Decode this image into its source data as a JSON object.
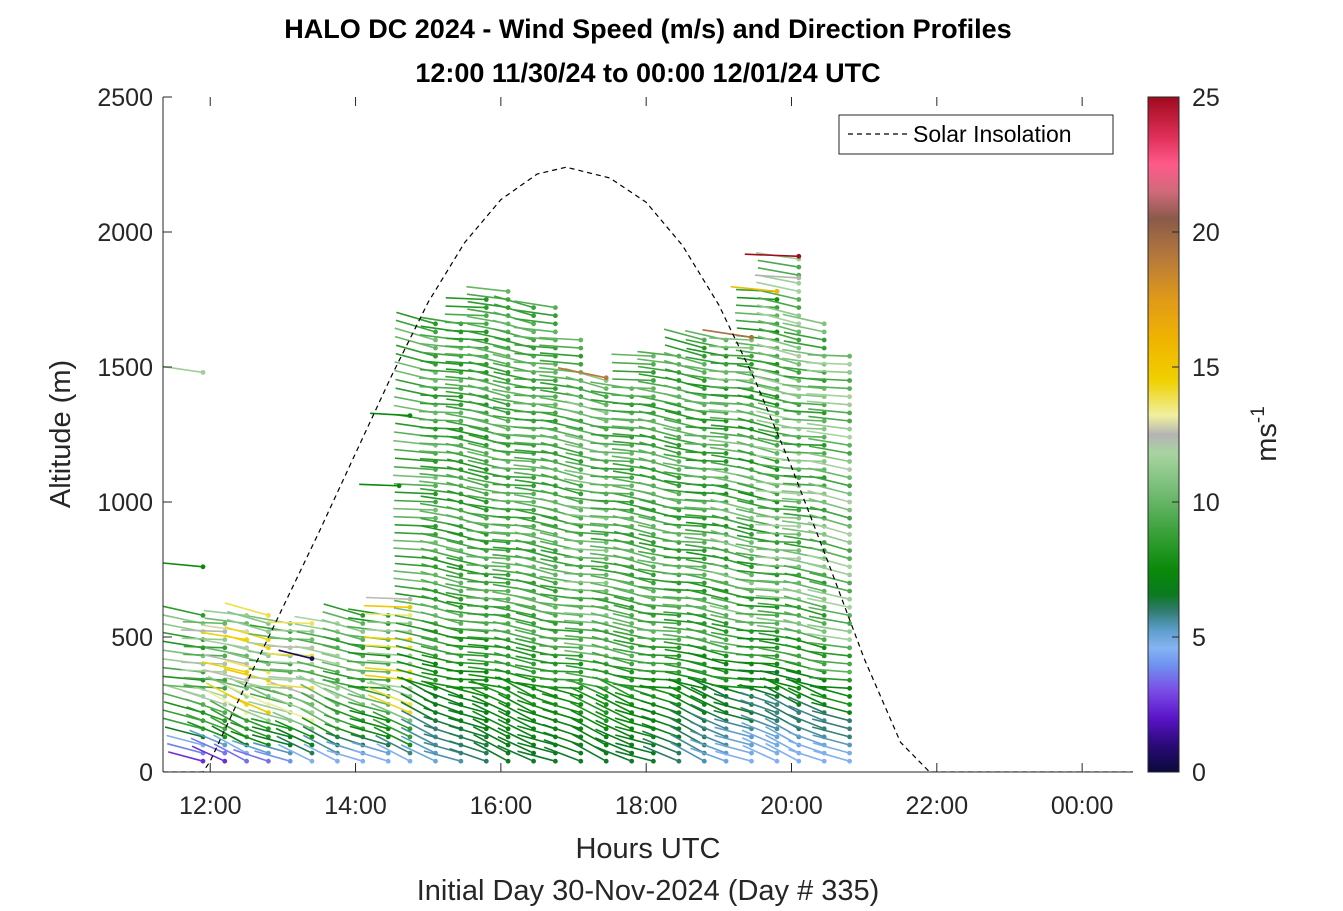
{
  "chart_data": {
    "type": "scatter",
    "title": "HALO DC 2024 - Wind Speed (m/s) and Direction Profiles",
    "subtitle": "12:00 11/30/24 to 00:00 12/01/24  UTC",
    "xlabel": "Hours UTC",
    "x_sublabel": "Initial Day 30-Nov-2024 (Day # 335)",
    "ylabel": "Altitude (m)",
    "xlim": [
      11.35,
      24.7
    ],
    "ylim": [
      0,
      2500
    ],
    "x_ticks": [
      {
        "value": 12,
        "label": "12:00"
      },
      {
        "value": 14,
        "label": "14:00"
      },
      {
        "value": 16,
        "label": "16:00"
      },
      {
        "value": 18,
        "label": "18:00"
      },
      {
        "value": 20,
        "label": "20:00"
      },
      {
        "value": 22,
        "label": "22:00"
      },
      {
        "value": 24,
        "label": "00:00"
      }
    ],
    "y_ticks": [
      {
        "value": 0,
        "label": "0"
      },
      {
        "value": 500,
        "label": "500"
      },
      {
        "value": 1000,
        "label": "1000"
      },
      {
        "value": 1500,
        "label": "1500"
      },
      {
        "value": 2000,
        "label": "2000"
      },
      {
        "value": 2500,
        "label": "2500"
      }
    ],
    "legend": {
      "position": "top-right",
      "entries": [
        "Solar Insolation"
      ]
    },
    "colorbar": {
      "label": "ms",
      "label_sup": "-1",
      "range": [
        0,
        25
      ],
      "ticks": [
        {
          "value": 0,
          "label": "0"
        },
        {
          "value": 5,
          "label": "5"
        },
        {
          "value": 10,
          "label": "10"
        },
        {
          "value": 15,
          "label": "15"
        },
        {
          "value": 20,
          "label": "20"
        },
        {
          "value": 25,
          "label": "25"
        }
      ],
      "stops": [
        {
          "v": 0,
          "c": "#0a0a3c"
        },
        {
          "v": 1,
          "c": "#2a0a78"
        },
        {
          "v": 2,
          "c": "#5a14c8"
        },
        {
          "v": 3,
          "c": "#7a4ce6"
        },
        {
          "v": 4,
          "c": "#6f94f0"
        },
        {
          "v": 4.6,
          "c": "#86b4f2"
        },
        {
          "v": 5.3,
          "c": "#5a9cc8"
        },
        {
          "v": 6.0,
          "c": "#2e7a6a"
        },
        {
          "v": 6.6,
          "c": "#0a7a1e"
        },
        {
          "v": 7.5,
          "c": "#0a8a0a"
        },
        {
          "v": 9,
          "c": "#3ea33e"
        },
        {
          "v": 10.5,
          "c": "#78be78"
        },
        {
          "v": 11.8,
          "c": "#a8d4a0"
        },
        {
          "v": 12.5,
          "c": "#b4b4b4"
        },
        {
          "v": 13.2,
          "c": "#f0f0a0"
        },
        {
          "v": 14.5,
          "c": "#f0d000"
        },
        {
          "v": 16,
          "c": "#f0b400"
        },
        {
          "v": 17.5,
          "c": "#e09a18"
        },
        {
          "v": 19,
          "c": "#b87a3a"
        },
        {
          "v": 20.5,
          "c": "#8a5a4a"
        },
        {
          "v": 21.5,
          "c": "#d06a7a"
        },
        {
          "v": 22.5,
          "c": "#ff5a8a"
        },
        {
          "v": 23.5,
          "c": "#e0305a"
        },
        {
          "v": 25,
          "c": "#a00a1e"
        }
      ]
    },
    "solar_insolation": {
      "series_name": "Solar Insolation",
      "x": [
        11.35,
        11.9,
        12.0,
        12.5,
        13.0,
        13.5,
        14.0,
        14.5,
        15.0,
        15.5,
        16.0,
        16.5,
        16.9,
        17.5,
        18.0,
        18.5,
        19.0,
        19.5,
        20.0,
        20.5,
        21.0,
        21.5,
        21.9,
        22.5,
        24.7
      ],
      "y": [
        0,
        0,
        40,
        330,
        610,
        890,
        1180,
        1470,
        1740,
        1960,
        2120,
        2215,
        2240,
        2200,
        2110,
        1950,
        1730,
        1450,
        1130,
        780,
        420,
        110,
        0,
        0,
        0
      ]
    },
    "wind_profiles": [
      {
        "time": 11.9,
        "alt_min": 40,
        "alt_max": 580,
        "speed_low": 2.5,
        "speed_high": 11.5
      },
      {
        "time": 12.2,
        "alt_min": 40,
        "alt_max": 560,
        "speed_low": 2.5,
        "speed_high": 12.5
      },
      {
        "time": 12.5,
        "alt_min": 40,
        "alt_max": 600,
        "speed_low": 3.5,
        "speed_high": 14.5
      },
      {
        "time": 12.8,
        "alt_min": 40,
        "alt_max": 590,
        "speed_low": 3.5,
        "speed_high": 15
      },
      {
        "time": 13.1,
        "alt_min": 40,
        "alt_max": 560,
        "speed_low": 4,
        "speed_high": 12
      },
      {
        "time": 13.4,
        "alt_min": 40,
        "alt_max": 560,
        "speed_low": 4.5,
        "speed_high": 14
      },
      {
        "time": 13.75,
        "alt_min": 40,
        "alt_max": 550,
        "speed_low": 4.5,
        "speed_high": 12
      },
      {
        "time": 14.1,
        "alt_min": 40,
        "alt_max": 580,
        "speed_low": 4.5,
        "speed_high": 11
      },
      {
        "time": 14.45,
        "alt_min": 40,
        "alt_max": 580,
        "speed_low": 4.5,
        "speed_high": 10
      },
      {
        "time": 14.75,
        "alt_min": 40,
        "alt_max": 650,
        "speed_low": 4.5,
        "speed_high": 15
      },
      {
        "time": 15.1,
        "alt_min": 40,
        "alt_max": 1660,
        "speed_low": 5,
        "speed_high": 10.5
      },
      {
        "time": 15.45,
        "alt_min": 40,
        "alt_max": 1670,
        "speed_low": 5.5,
        "speed_high": 10
      },
      {
        "time": 15.8,
        "alt_min": 40,
        "alt_max": 1760,
        "speed_low": 6,
        "speed_high": 9.5
      },
      {
        "time": 16.1,
        "alt_min": 40,
        "alt_max": 1780,
        "speed_low": 6.5,
        "speed_high": 10
      },
      {
        "time": 16.45,
        "alt_min": 40,
        "alt_max": 1740,
        "speed_low": 6.5,
        "speed_high": 10
      },
      {
        "time": 16.75,
        "alt_min": 40,
        "alt_max": 1740,
        "speed_low": 6.5,
        "speed_high": 10
      },
      {
        "time": 17.1,
        "alt_min": 40,
        "alt_max": 1620,
        "speed_low": 6.5,
        "speed_high": 10
      },
      {
        "time": 17.45,
        "alt_min": 40,
        "alt_max": 1460,
        "speed_low": 6.5,
        "speed_high": 11
      },
      {
        "time": 17.8,
        "alt_min": 40,
        "alt_max": 1420,
        "speed_low": 6.5,
        "speed_high": 10
      },
      {
        "time": 18.1,
        "alt_min": 40,
        "alt_max": 1540,
        "speed_low": 6.5,
        "speed_high": 10
      },
      {
        "time": 18.45,
        "alt_min": 40,
        "alt_max": 1540,
        "speed_low": 6,
        "speed_high": 10
      },
      {
        "time": 18.8,
        "alt_min": 40,
        "alt_max": 1600,
        "speed_low": 5.5,
        "speed_high": 10
      },
      {
        "time": 19.1,
        "alt_min": 40,
        "alt_max": 1600,
        "speed_low": 5,
        "speed_high": 10
      },
      {
        "time": 19.45,
        "alt_min": 40,
        "alt_max": 1610,
        "speed_low": 4.5,
        "speed_high": 11
      },
      {
        "time": 19.8,
        "alt_min": 40,
        "alt_max": 1780,
        "speed_low": 4.5,
        "speed_high": 10
      },
      {
        "time": 20.1,
        "alt_min": 40,
        "alt_max": 1910,
        "speed_low": 4.5,
        "speed_high": 12
      },
      {
        "time": 20.45,
        "alt_min": 40,
        "alt_max": 1660,
        "speed_low": 4.5,
        "speed_high": 11
      },
      {
        "time": 20.8,
        "alt_min": 40,
        "alt_max": 1540,
        "speed_low": 4.5,
        "speed_high": 12
      }
    ],
    "wind_points": [
      {
        "time": 11.9,
        "alt": 1480,
        "speed": 11.5
      },
      {
        "time": 11.9,
        "alt": 760,
        "speed": 7.5
      },
      {
        "time": 14.75,
        "alt": 1320,
        "speed": 7.5
      },
      {
        "time": 14.6,
        "alt": 1060,
        "speed": 7.5
      },
      {
        "time": 20.1,
        "alt": 1910,
        "speed": 25
      },
      {
        "time": 20.1,
        "alt": 1830,
        "speed": 12.5
      },
      {
        "time": 19.8,
        "alt": 1780,
        "speed": 15.5
      },
      {
        "time": 19.45,
        "alt": 1610,
        "speed": 19.5
      },
      {
        "time": 17.45,
        "alt": 1460,
        "speed": 19
      },
      {
        "time": 13.4,
        "alt": 420,
        "speed": 0.5
      }
    ]
  }
}
